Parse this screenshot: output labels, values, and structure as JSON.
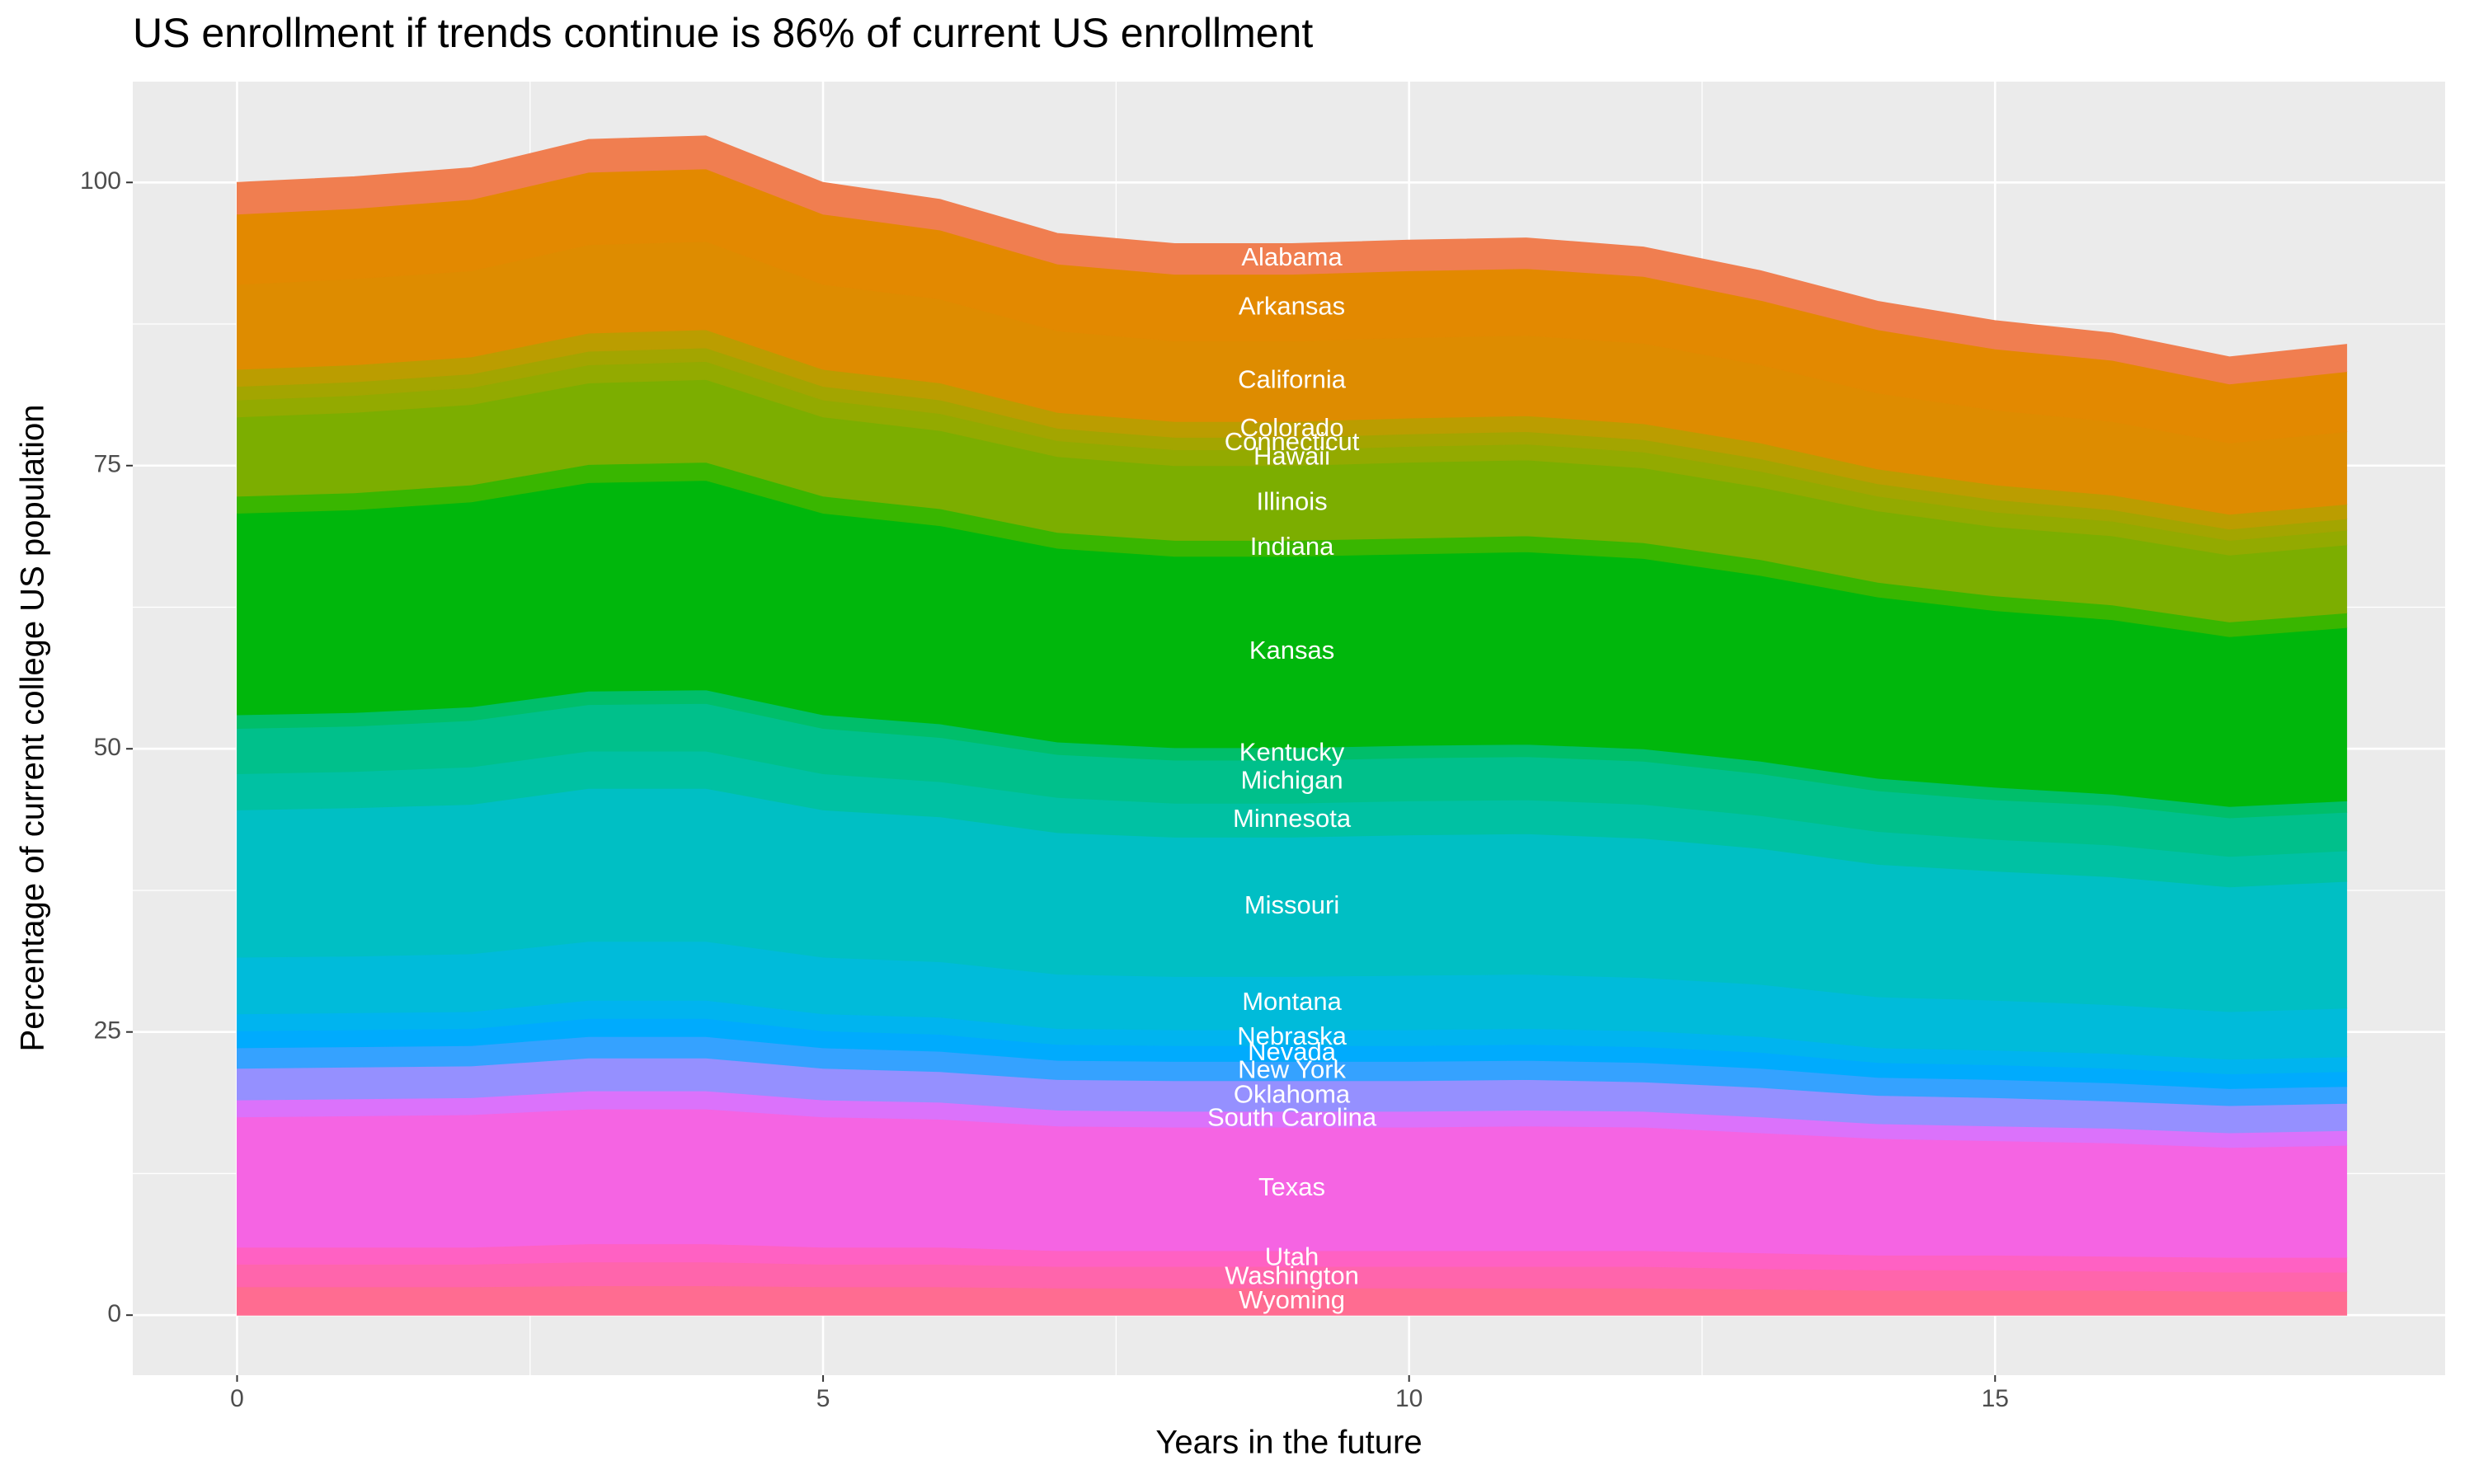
{
  "chart_data": {
    "type": "stacked_area",
    "title": "US enrollment if trends continue is 86% of current US enrollment",
    "x_label": "Years in the future",
    "y_label": "Percentage of current college US population",
    "x": [
      0,
      1,
      2,
      3,
      4,
      5,
      6,
      7,
      8,
      9,
      10,
      11,
      12,
      13,
      14,
      15,
      16,
      17,
      18
    ],
    "xlim": [
      -0.89,
      18.84
    ],
    "xticks": [
      0,
      5,
      10,
      15
    ],
    "ylim": [
      -5.3,
      108.9
    ],
    "yticks": [
      0,
      25,
      50,
      75,
      100
    ],
    "grid": true,
    "label_at": 9,
    "series": [
      {
        "name": "Wyoming",
        "color": "#FF6C91",
        "values": [
          2.5,
          2.5,
          2.5,
          2.6,
          2.6,
          2.5,
          2.5,
          2.4,
          2.4,
          2.4,
          2.4,
          2.4,
          2.4,
          2.3,
          2.2,
          2.2,
          2.2,
          2.1,
          2.1
        ]
      },
      {
        "name": "Washington",
        "color": "#FF65AC",
        "values": [
          2.0,
          2.0,
          2.0,
          2.1,
          2.1,
          2.0,
          2.0,
          1.9,
          1.9,
          1.9,
          1.9,
          1.9,
          1.9,
          1.8,
          1.8,
          1.8,
          1.7,
          1.7,
          1.7
        ]
      },
      {
        "name": "Utah",
        "color": "#FF61C3",
        "values": [
          1.5,
          1.5,
          1.5,
          1.6,
          1.6,
          1.5,
          1.5,
          1.4,
          1.4,
          1.4,
          1.4,
          1.4,
          1.4,
          1.4,
          1.3,
          1.3,
          1.3,
          1.3,
          1.3
        ]
      },
      {
        "name": "Texas",
        "color": "#F564E3",
        "values": [
          11.5,
          11.6,
          11.7,
          11.9,
          11.9,
          11.5,
          11.3,
          11.0,
          10.9,
          10.9,
          10.9,
          11.0,
          10.9,
          10.6,
          10.3,
          10.1,
          10.0,
          9.7,
          9.9
        ]
      },
      {
        "name": "South Carolina",
        "color": "#DB72FB",
        "values": [
          1.5,
          1.5,
          1.5,
          1.6,
          1.6,
          1.5,
          1.5,
          1.4,
          1.4,
          1.4,
          1.4,
          1.4,
          1.4,
          1.4,
          1.3,
          1.3,
          1.3,
          1.3,
          1.3
        ]
      },
      {
        "name": "Oklahoma",
        "color": "#9590FF",
        "values": [
          2.8,
          2.8,
          2.8,
          2.9,
          2.9,
          2.8,
          2.7,
          2.7,
          2.7,
          2.7,
          2.7,
          2.7,
          2.6,
          2.6,
          2.5,
          2.5,
          2.4,
          2.4,
          2.4
        ]
      },
      {
        "name": "New York",
        "color": "#35A2FF",
        "values": [
          1.8,
          1.8,
          1.8,
          1.9,
          1.9,
          1.8,
          1.8,
          1.7,
          1.7,
          1.7,
          1.7,
          1.7,
          1.7,
          1.7,
          1.6,
          1.6,
          1.6,
          1.5,
          1.5
        ]
      },
      {
        "name": "Nevada",
        "color": "#00ABFD",
        "values": [
          1.5,
          1.5,
          1.5,
          1.6,
          1.6,
          1.5,
          1.5,
          1.4,
          1.4,
          1.4,
          1.4,
          1.4,
          1.4,
          1.4,
          1.3,
          1.3,
          1.3,
          1.3,
          1.3
        ]
      },
      {
        "name": "Nebraska",
        "color": "#00B4EF",
        "values": [
          1.5,
          1.5,
          1.5,
          1.6,
          1.6,
          1.5,
          1.5,
          1.4,
          1.4,
          1.4,
          1.4,
          1.4,
          1.4,
          1.4,
          1.3,
          1.3,
          1.3,
          1.3,
          1.3
        ]
      },
      {
        "name": "Montana",
        "color": "#00BBDA",
        "values": [
          5.0,
          5.0,
          5.1,
          5.2,
          5.2,
          5.0,
          4.9,
          4.8,
          4.7,
          4.7,
          4.8,
          4.8,
          4.7,
          4.6,
          4.5,
          4.4,
          4.3,
          4.2,
          4.3
        ]
      },
      {
        "name": "Missouri",
        "color": "#00BFC4",
        "values": [
          13.0,
          13.1,
          13.2,
          13.5,
          13.5,
          13.0,
          12.8,
          12.5,
          12.3,
          12.3,
          12.4,
          12.4,
          12.3,
          12.0,
          11.7,
          11.4,
          11.3,
          11.0,
          11.2
        ]
      },
      {
        "name": "Minnesota",
        "color": "#00C1A3",
        "values": [
          3.2,
          3.2,
          3.3,
          3.3,
          3.3,
          3.2,
          3.1,
          3.1,
          3.0,
          3.0,
          3.0,
          3.0,
          3.0,
          2.9,
          2.9,
          2.8,
          2.8,
          2.7,
          2.7
        ]
      },
      {
        "name": "Michigan",
        "color": "#00C08B",
        "values": [
          4.0,
          4.0,
          4.1,
          4.1,
          4.2,
          4.0,
          3.9,
          3.8,
          3.8,
          3.8,
          3.8,
          3.8,
          3.8,
          3.7,
          3.6,
          3.5,
          3.5,
          3.4,
          3.4
        ]
      },
      {
        "name": "Kentucky",
        "color": "#00BE6A",
        "values": [
          1.2,
          1.2,
          1.2,
          1.2,
          1.2,
          1.2,
          1.2,
          1.1,
          1.1,
          1.1,
          1.1,
          1.1,
          1.1,
          1.1,
          1.1,
          1.1,
          1.0,
          1.0,
          1.0
        ]
      },
      {
        "name": "Kansas",
        "color": "#00B70C",
        "values": [
          17.8,
          17.9,
          18.1,
          18.4,
          18.5,
          17.8,
          17.5,
          17.1,
          16.9,
          16.9,
          16.9,
          17.0,
          16.8,
          16.4,
          16.0,
          15.6,
          15.4,
          15.0,
          15.3
        ]
      },
      {
        "name": "Indiana",
        "color": "#39B600",
        "values": [
          1.5,
          1.5,
          1.5,
          1.6,
          1.6,
          1.5,
          1.5,
          1.4,
          1.4,
          1.4,
          1.4,
          1.4,
          1.4,
          1.4,
          1.3,
          1.3,
          1.3,
          1.3,
          1.3
        ]
      },
      {
        "name": "Illinois",
        "color": "#7CAE00",
        "values": [
          7.0,
          7.1,
          7.1,
          7.2,
          7.3,
          7.0,
          6.9,
          6.7,
          6.6,
          6.6,
          6.7,
          6.7,
          6.6,
          6.4,
          6.3,
          6.1,
          6.1,
          5.9,
          6.0
        ]
      },
      {
        "name": "Hawaii",
        "color": "#93AA00",
        "values": [
          1.5,
          1.5,
          1.5,
          1.6,
          1.6,
          1.5,
          1.5,
          1.4,
          1.4,
          1.4,
          1.4,
          1.4,
          1.4,
          1.4,
          1.3,
          1.3,
          1.3,
          1.3,
          1.3
        ]
      },
      {
        "name": "Connecticut",
        "color": "#A3A500",
        "values": [
          1.2,
          1.2,
          1.2,
          1.2,
          1.2,
          1.2,
          1.2,
          1.1,
          1.1,
          1.1,
          1.1,
          1.1,
          1.1,
          1.1,
          1.1,
          1.1,
          1.0,
          1.0,
          1.0
        ]
      },
      {
        "name": "Colorado",
        "color": "#BB9D00",
        "values": [
          1.5,
          1.5,
          1.5,
          1.6,
          1.6,
          1.5,
          1.5,
          1.4,
          1.4,
          1.4,
          1.4,
          1.4,
          1.4,
          1.4,
          1.3,
          1.3,
          1.3,
          1.3,
          1.3
        ]
      },
      {
        "name": "California",
        "color": "#DE8C00",
        "values": [
          7.5,
          7.6,
          7.6,
          7.8,
          7.8,
          7.5,
          7.4,
          7.2,
          7.1,
          7.1,
          7.1,
          7.1,
          7.1,
          6.9,
          6.7,
          6.6,
          6.5,
          6.3,
          6.4
        ]
      },
      {
        "name": "Arkansas",
        "color": "#E38900",
        "values": [
          6.2,
          6.2,
          6.3,
          6.4,
          6.4,
          6.2,
          6.1,
          5.9,
          5.9,
          5.9,
          5.9,
          5.9,
          5.9,
          5.7,
          5.6,
          5.4,
          5.4,
          5.2,
          5.3
        ]
      },
      {
        "name": "Alabama",
        "color": "#F07E50",
        "values": [
          2.8,
          2.8,
          2.8,
          2.9,
          2.9,
          2.8,
          2.7,
          2.7,
          2.7,
          2.7,
          2.7,
          2.7,
          2.6,
          2.6,
          2.5,
          2.5,
          2.4,
          2.4,
          2.4
        ]
      }
    ]
  }
}
